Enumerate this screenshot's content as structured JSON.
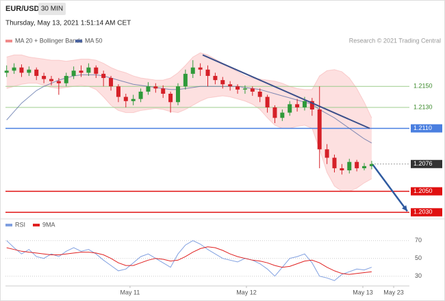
{
  "header": {
    "symbol": "EUR/USD",
    "timeframe": "30 MIN",
    "timestamp": "Thursday, May 13, 2021 1:51:14 AM CET",
    "source": "Research © 2021 Trading Central"
  },
  "chart_data": [
    {
      "type": "candlestick",
      "up_color": "#2f9a3a",
      "down_color": "#d52028",
      "x": [
        9.94,
        10.004,
        10.068,
        10.132,
        10.196,
        10.26,
        10.324,
        10.388,
        10.452,
        10.516,
        10.58,
        10.644,
        10.708,
        10.772,
        10.836,
        10.9,
        10.964,
        11.028,
        11.092,
        11.156,
        11.22,
        11.284,
        11.348,
        11.412,
        11.476,
        11.54,
        11.604,
        11.668,
        11.732,
        11.796,
        11.86,
        11.924,
        11.988,
        12.052,
        12.116,
        12.18,
        12.244,
        12.308,
        12.372,
        12.436,
        12.5,
        12.564,
        12.628,
        12.692,
        12.756,
        12.82,
        12.884,
        12.948,
        13.012,
        13.076
      ],
      "open": [
        1.2163,
        1.2165,
        1.2168,
        1.2163,
        1.2166,
        1.216,
        1.2157,
        1.2155,
        1.2153,
        1.216,
        1.2165,
        1.2163,
        1.2168,
        1.2162,
        1.2158,
        1.215,
        1.214,
        1.2136,
        1.2138,
        1.2145,
        1.215,
        1.2148,
        1.2143,
        1.2135,
        1.215,
        1.2162,
        1.2168,
        1.2166,
        1.216,
        1.2156,
        1.2152,
        1.215,
        1.2147,
        1.2148,
        1.2145,
        1.214,
        1.213,
        1.212,
        1.2125,
        1.2133,
        1.213,
        1.2136,
        1.2128,
        1.209,
        1.2082,
        1.2072,
        1.207,
        1.2078,
        1.2072,
        1.2074
      ],
      "high": [
        1.217,
        1.2172,
        1.2171,
        1.2169,
        1.2168,
        1.2163,
        1.216,
        1.2158,
        1.2163,
        1.2169,
        1.217,
        1.2172,
        1.217,
        1.2165,
        1.216,
        1.2152,
        1.2143,
        1.2142,
        1.2148,
        1.2154,
        1.2153,
        1.2151,
        1.2145,
        1.2153,
        1.2166,
        1.2175,
        1.2172,
        1.217,
        1.2163,
        1.2159,
        1.2155,
        1.2152,
        1.2151,
        1.215,
        1.2148,
        1.2142,
        1.2132,
        1.2128,
        1.2136,
        1.2138,
        1.214,
        1.2139,
        1.215,
        1.2095,
        1.2085,
        1.2076,
        1.2081,
        1.208,
        1.2077,
        1.2079
      ],
      "low": [
        1.2159,
        1.2162,
        1.2159,
        1.216,
        1.2156,
        1.2153,
        1.2151,
        1.2142,
        1.215,
        1.2157,
        1.2159,
        1.216,
        1.2158,
        1.215,
        1.2146,
        1.2135,
        1.213,
        1.2132,
        1.2135,
        1.2142,
        1.2144,
        1.2139,
        1.2125,
        1.2132,
        1.2147,
        1.2158,
        1.216,
        1.215,
        1.2152,
        1.2148,
        1.2146,
        1.2143,
        1.2143,
        1.2141,
        1.2135,
        1.2125,
        1.2115,
        1.2117,
        1.2122,
        1.2126,
        1.2127,
        1.2122,
        1.2072,
        1.2076,
        1.2068,
        1.2066,
        1.2067,
        1.2069,
        1.207,
        1.2071
      ],
      "close": [
        1.2165,
        1.2168,
        1.2163,
        1.2166,
        1.216,
        1.2157,
        1.2155,
        1.2153,
        1.216,
        1.2165,
        1.2163,
        1.2168,
        1.2162,
        1.2158,
        1.215,
        1.214,
        1.2136,
        1.2138,
        1.2145,
        1.215,
        1.2148,
        1.2143,
        1.2135,
        1.215,
        1.2162,
        1.2168,
        1.2166,
        1.216,
        1.2156,
        1.2152,
        1.215,
        1.2147,
        1.2148,
        1.2145,
        1.214,
        1.213,
        1.212,
        1.2125,
        1.2133,
        1.213,
        1.2136,
        1.2128,
        1.209,
        1.2082,
        1.2072,
        1.207,
        1.2078,
        1.2072,
        1.2074,
        1.2076
      ],
      "series": [
        {
          "name": "MA 20 + Bollinger Bands",
          "color": "#f08a8a",
          "upper": [
            1.2178,
            1.218,
            1.218,
            1.2178,
            1.2177,
            1.2176,
            1.2175,
            1.2175,
            1.2174,
            1.2175,
            1.2176,
            1.2176,
            1.2175,
            1.2172,
            1.2168,
            1.2165,
            1.2163,
            1.216,
            1.2158,
            1.2157,
            1.2156,
            1.2156,
            1.2158,
            1.2163,
            1.217,
            1.2178,
            1.2182,
            1.218,
            1.2176,
            1.2172,
            1.2168,
            1.2164,
            1.216,
            1.2158,
            1.2157,
            1.2156,
            1.2155,
            1.2153,
            1.215,
            1.2148,
            1.2147,
            1.2147,
            1.216,
            1.2165,
            1.2166,
            1.2164,
            1.2158,
            1.2148,
            1.2135,
            1.212
          ],
          "lower": [
            1.2148,
            1.215,
            1.2152,
            1.2153,
            1.2153,
            1.2151,
            1.2149,
            1.2148,
            1.2149,
            1.215,
            1.2151,
            1.215,
            1.2147,
            1.214,
            1.2132,
            1.2127,
            1.2125,
            1.2125,
            1.2127,
            1.2128,
            1.2129,
            1.2128,
            1.2126,
            1.2125,
            1.2128,
            1.2132,
            1.2136,
            1.2139,
            1.214,
            1.2141,
            1.214,
            1.2138,
            1.2136,
            1.2133,
            1.2128,
            1.212,
            1.2113,
            1.211,
            1.211,
            1.2112,
            1.2113,
            1.211,
            1.209,
            1.2068,
            1.2055,
            1.205,
            1.205,
            1.2053,
            1.2058,
            1.2062
          ]
        },
        {
          "name": "MA 50",
          "color": "#4a63a0",
          "values": [
            1.2118,
            1.2126,
            1.2134,
            1.214,
            1.2146,
            1.215,
            1.2153,
            1.2156,
            1.2158,
            1.216,
            1.2161,
            1.2161,
            1.2161,
            1.216,
            1.2158,
            1.2156,
            1.2154,
            1.2152,
            1.2151,
            1.215,
            1.2149,
            1.2148,
            1.2147,
            1.2147,
            1.2148,
            1.2149,
            1.215,
            1.215,
            1.215,
            1.215,
            1.215,
            1.215,
            1.2149,
            1.2148,
            1.2147,
            1.2145,
            1.2143,
            1.2141,
            1.2139,
            1.2137,
            1.2135,
            1.2133,
            1.2128,
            1.2124,
            1.212,
            1.2115,
            1.211,
            1.2105,
            1.21,
            1.2096
          ]
        }
      ],
      "xlim": [
        9.93,
        13.4
      ],
      "ylim": [
        1.2025,
        1.2203
      ],
      "levels": [
        {
          "value": 1.215,
          "label": "1.2150",
          "color": "#9ccc8c"
        },
        {
          "value": 1.213,
          "label": "1.2130",
          "color": "#9ccc8c"
        },
        {
          "value": 1.211,
          "label": "1.2110",
          "color": "#4a7fe0",
          "boxed": true
        },
        {
          "value": 1.2076,
          "label": "1.2076",
          "color": "#333333",
          "boxed": true,
          "dotted": true
        },
        {
          "value": 1.205,
          "label": "1.2050",
          "color": "#e01010",
          "boxed": true
        },
        {
          "value": 1.203,
          "label": "1.2030",
          "color": "#e01010",
          "boxed": true
        }
      ],
      "trendline": {
        "color": "#3b4f8a",
        "x": [
          11.624,
          13.059
        ],
        "values": [
          1.218,
          1.211
        ]
      },
      "arrow": {
        "color": "#2f5aa0",
        "x": [
          13.088,
          13.382
        ],
        "values": [
          1.2075,
          1.2031
        ]
      }
    },
    {
      "type": "line",
      "xlim": [
        9.93,
        13.4
      ],
      "ylim": [
        19,
        79
      ],
      "yticks": [
        70,
        50,
        30
      ],
      "x": [
        9.94,
        10.004,
        10.068,
        10.132,
        10.196,
        10.26,
        10.324,
        10.388,
        10.452,
        10.516,
        10.58,
        10.644,
        10.708,
        10.772,
        10.836,
        10.9,
        10.964,
        11.028,
        11.092,
        11.156,
        11.22,
        11.284,
        11.348,
        11.412,
        11.476,
        11.54,
        11.604,
        11.668,
        11.732,
        11.796,
        11.86,
        11.924,
        11.988,
        12.052,
        12.116,
        12.18,
        12.244,
        12.308,
        12.372,
        12.436,
        12.5,
        12.564,
        12.628,
        12.692,
        12.756,
        12.82,
        12.884,
        12.948,
        13.012,
        13.076
      ],
      "xticks": [
        {
          "value": 11,
          "label": "May 11"
        },
        {
          "value": 12,
          "label": "May 12"
        },
        {
          "value": 13,
          "label": "May 13"
        },
        {
          "value": 13.265,
          "label": "May 23"
        }
      ],
      "series": [
        {
          "name": "RSI",
          "color": "#7f9fe0",
          "values": [
            70,
            62,
            55,
            60,
            52,
            50,
            55,
            52,
            58,
            62,
            58,
            60,
            55,
            48,
            42,
            36,
            38,
            45,
            52,
            55,
            50,
            45,
            40,
            55,
            65,
            70,
            66,
            60,
            55,
            50,
            48,
            46,
            50,
            48,
            44,
            38,
            30,
            40,
            50,
            52,
            55,
            45,
            30,
            28,
            25,
            32,
            35,
            38,
            37,
            40
          ]
        },
        {
          "name": "9MA",
          "color": "#e02020",
          "values": [
            62,
            60,
            58,
            57,
            56,
            55,
            54,
            54,
            55,
            56,
            57,
            57,
            56,
            54,
            50,
            45,
            42,
            42,
            45,
            48,
            50,
            49,
            47,
            48,
            52,
            57,
            61,
            63,
            62,
            59,
            55,
            52,
            50,
            48,
            47,
            45,
            42,
            40,
            41,
            44,
            47,
            48,
            45,
            40,
            36,
            33,
            32,
            33,
            34,
            35
          ]
        }
      ]
    }
  ]
}
